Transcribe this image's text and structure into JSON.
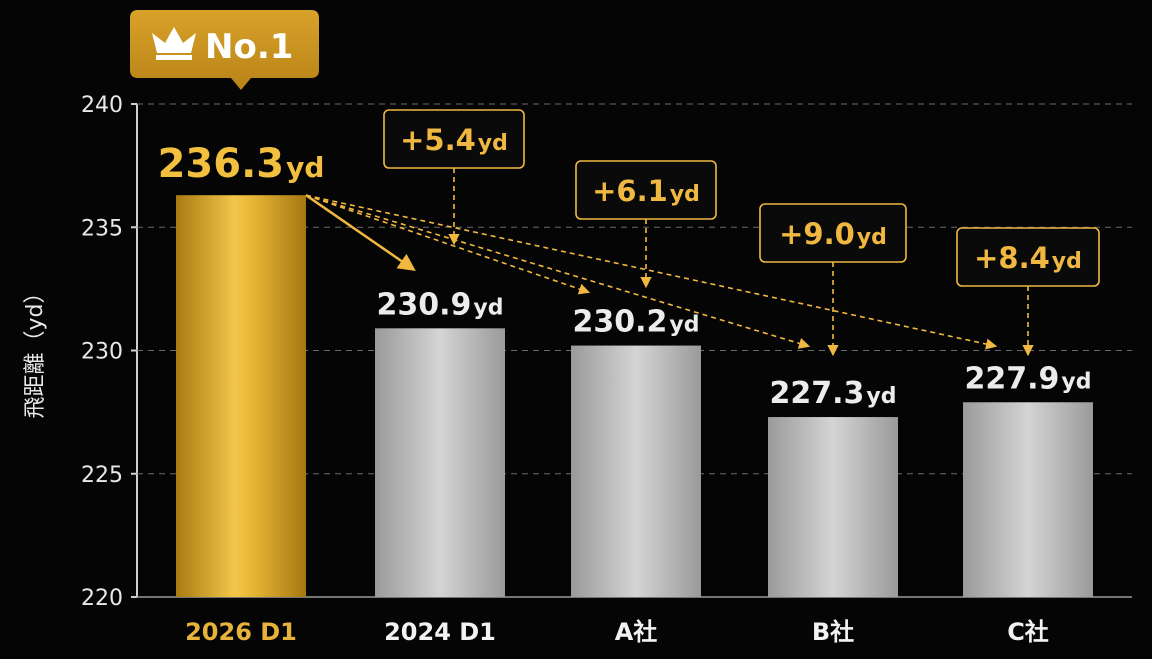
{
  "chart_data": {
    "type": "bar",
    "ylabel": "飛距離（yd）",
    "ylim": [
      220,
      240
    ],
    "yticks": [
      220,
      225,
      230,
      235,
      240
    ],
    "categories": [
      "2026 D1",
      "2024 D1",
      "A社",
      "B社",
      "C社"
    ],
    "values": [
      236.3,
      230.9,
      230.2,
      227.3,
      227.9
    ],
    "value_unit": "yd",
    "value_labels": [
      "236.3",
      "230.9",
      "230.2",
      "227.3",
      "227.9"
    ],
    "differences": [
      {
        "target": "2024 D1",
        "text": "+5.4",
        "unit": "yd"
      },
      {
        "target": "A社",
        "text": "+6.1",
        "unit": "yd"
      },
      {
        "target": "B社",
        "text": "+9.0",
        "unit": "yd"
      },
      {
        "target": "C社",
        "text": "+8.4",
        "unit": "yd"
      }
    ],
    "badge": {
      "text": "No.1",
      "icon": "crown-icon",
      "target": "2026 D1"
    },
    "highlight_color": "#e0a92a",
    "bar_color": "#b8b8b8",
    "grid": "dashed"
  }
}
